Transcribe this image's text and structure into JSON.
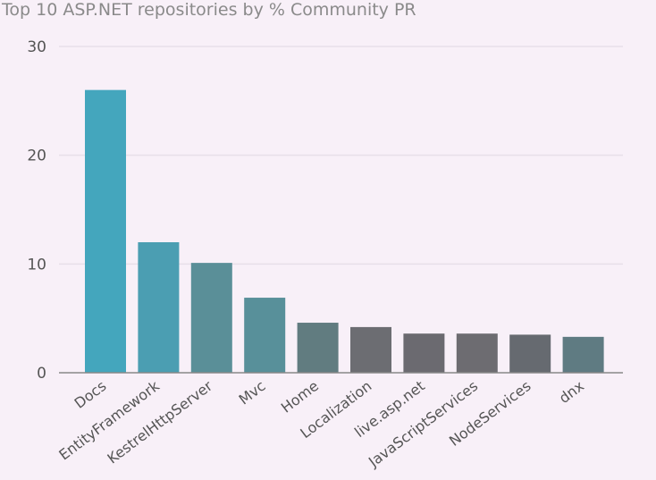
{
  "chart_data": {
    "type": "bar",
    "title": "Top 10 ASP.NET repositories by % Community PR",
    "xlabel": "",
    "ylabel": "",
    "ylim": [
      0,
      30
    ],
    "yticks": [
      0,
      10,
      20,
      30
    ],
    "grid": true,
    "categories": [
      "Docs",
      "EntityFramework",
      "KestrelHttpServer",
      "Mvc",
      "Home",
      "Localization",
      "live.asp.net",
      "JavaScriptServices",
      "NodeServices",
      "dnx"
    ],
    "values": [
      26.0,
      12.0,
      10.1,
      6.9,
      4.6,
      4.2,
      3.6,
      3.6,
      3.5,
      3.3
    ],
    "colors": [
      "#44a6bd",
      "#4b9eb2",
      "#5a8f98",
      "#58909a",
      "#617c80",
      "#6c6d72",
      "#6b6a70",
      "#6d6c71",
      "#666a70",
      "#5f7b82"
    ]
  },
  "colors": {
    "background": "#f8f0f8",
    "grid": "#e7dfe9",
    "axis": "#888888",
    "text": "#555555",
    "title": "#8a8a8a"
  }
}
